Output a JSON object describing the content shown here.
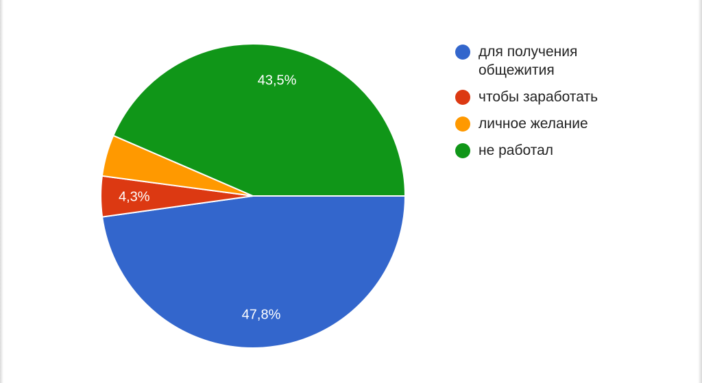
{
  "chart_data": {
    "type": "pie",
    "title": "",
    "start_direction": "right",
    "slices": [
      {
        "label": "для получения общежития",
        "value": 47.8,
        "display": "47,8%",
        "color": "#3366cc"
      },
      {
        "label": "чтобы заработать",
        "value": 4.3,
        "display": "4,3%",
        "color": "#dc3912"
      },
      {
        "label": "личное желание",
        "value": 4.4,
        "display": "",
        "color": "#ff9900"
      },
      {
        "label": "не работал",
        "value": 43.5,
        "display": "43,5%",
        "color": "#109618"
      }
    ],
    "legend_position": "right"
  }
}
